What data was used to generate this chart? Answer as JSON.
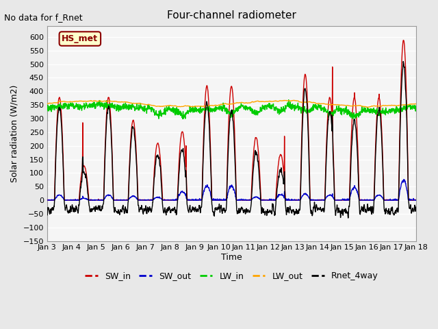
{
  "title": "Four-channel radiometer",
  "top_left_text": "No data for f_Rnet",
  "ylabel": "Solar radiation (W/m2)",
  "xlabel": "Time",
  "annotation_text": "HS_met",
  "annotation_bg": "#FFFFCC",
  "annotation_border": "#8B0000",
  "ylim": [
    -150,
    640
  ],
  "yticks": [
    -150,
    -100,
    -50,
    0,
    50,
    100,
    150,
    200,
    250,
    300,
    350,
    400,
    450,
    500,
    550,
    600
  ],
  "xtick_labels": [
    "Jan 3",
    "Jan 4",
    "Jan 5",
    "Jan 6",
    "Jan 7",
    "Jan 8",
    "Jan 9",
    "Jan 10",
    "Jan 11",
    "Jan 12",
    "Jan 13",
    "Jan 14",
    "Jan 15",
    "Jan 16",
    "Jan 17",
    "Jan 18"
  ],
  "colors": {
    "SW_in": "#CC0000",
    "SW_out": "#0000CC",
    "LW_in": "#00CC00",
    "LW_out": "#FFA500",
    "Rnet_4way": "#000000"
  },
  "bg_color": "#E8E8E8",
  "plot_bg": "#F5F5F5",
  "grid_color": "#FFFFFF",
  "n_days": 15,
  "n_per_day": 100
}
